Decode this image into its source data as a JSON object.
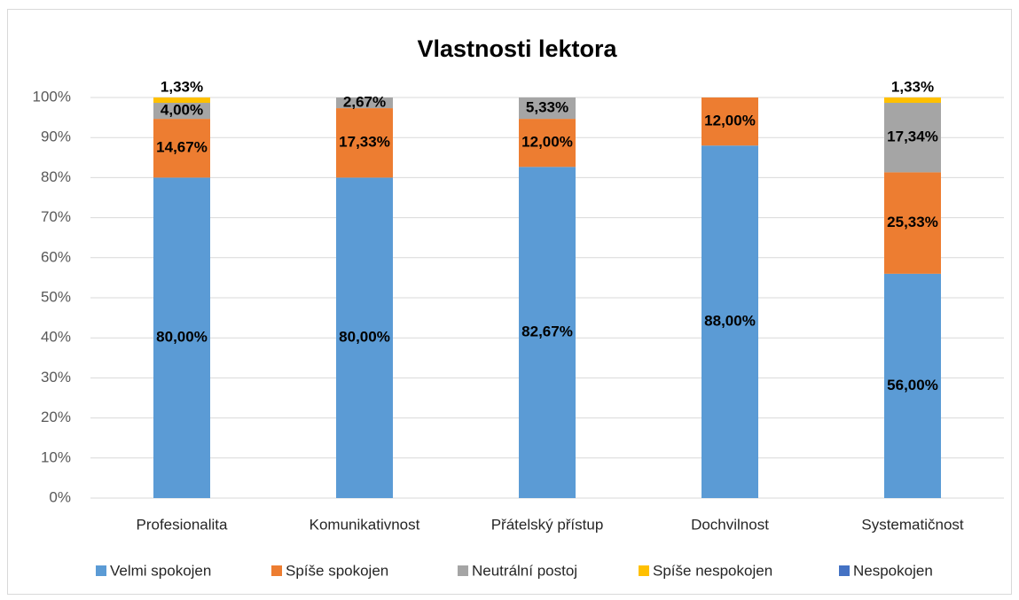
{
  "chart_data": {
    "type": "stacked_bar",
    "title": "Vlastnosti lektora",
    "categories": [
      "Profesionalita",
      "Komunikativnost",
      "Přátelský přístup",
      "Dochvilnost",
      "Systematičnost"
    ],
    "series": [
      {
        "name": "Velmi spokojen",
        "color": "#5b9bd5",
        "values": [
          80,
          80,
          82.67,
          88,
          56
        ],
        "value_labels": [
          "80,00%",
          "80,00%",
          "82,67%",
          "88,00%",
          "56,00%"
        ]
      },
      {
        "name": "Spíše spokojen",
        "color": "#ed7d31",
        "values": [
          14.67,
          17.33,
          12,
          12,
          25.33
        ],
        "value_labels": [
          "14,67%",
          "17,33%",
          "12,00%",
          "12,00%",
          "25,33%"
        ]
      },
      {
        "name": "Neutrální postoj",
        "color": "#a5a5a5",
        "values": [
          4,
          2.67,
          5.33,
          0,
          17.34
        ],
        "value_labels": [
          "4,00%",
          "2,67%",
          "5,33%",
          null,
          "17,34%"
        ]
      },
      {
        "name": "Spíše nespokojen",
        "color": "#ffc000",
        "values": [
          1.33,
          0,
          0,
          0,
          1.33
        ],
        "value_labels": [
          "1,33%",
          null,
          null,
          null,
          "1,33%"
        ]
      },
      {
        "name": "Nespokojen",
        "color": "#4472c4",
        "values": [
          0,
          0,
          0,
          0,
          0
        ],
        "value_labels": [
          null,
          null,
          null,
          null,
          null
        ]
      }
    ],
    "ylim": [
      0,
      100
    ],
    "yticks": [
      {
        "value": 0,
        "label": "0%"
      },
      {
        "value": 10,
        "label": "10%"
      },
      {
        "value": 20,
        "label": "20%"
      },
      {
        "value": 30,
        "label": "30%"
      },
      {
        "value": 40,
        "label": "40%"
      },
      {
        "value": 50,
        "label": "50%"
      },
      {
        "value": 60,
        "label": "60%"
      },
      {
        "value": 70,
        "label": "70%"
      },
      {
        "value": 80,
        "label": "80%"
      },
      {
        "value": 90,
        "label": "90%"
      },
      {
        "value": 100,
        "label": "100%"
      }
    ],
    "grid": true,
    "legend": "bottom"
  }
}
